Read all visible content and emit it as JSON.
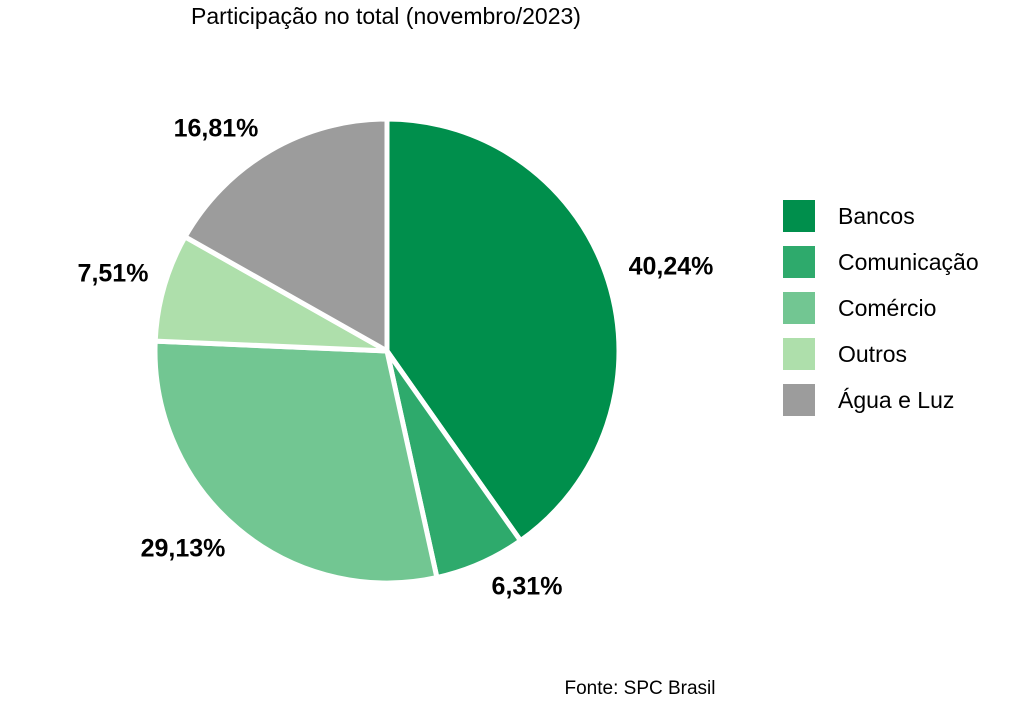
{
  "chart_data": {
    "type": "pie",
    "title": "Participação no total (novembro/2023)",
    "source": "Fonte: SPC Brasil",
    "legend_position": "right",
    "slices": [
      {
        "name": "Bancos",
        "value": 40.24,
        "label": "40,24%",
        "color": "#008f4c"
      },
      {
        "name": "Comunicação",
        "value": 6.31,
        "label": "6,31%",
        "color": "#2eaa6c"
      },
      {
        "name": "Comércio",
        "value": 29.13,
        "label": "29,13%",
        "color": "#72c692"
      },
      {
        "name": "Outros",
        "value": 7.51,
        "label": "7,51%",
        "color": "#aedfab"
      },
      {
        "name": "Água e Luz",
        "value": 16.81,
        "label": "16,81%",
        "color": "#9c9c9c"
      }
    ]
  }
}
